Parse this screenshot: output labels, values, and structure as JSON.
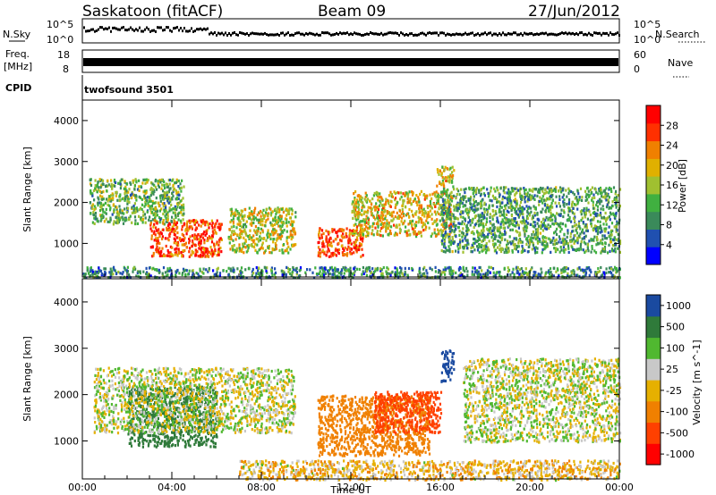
{
  "header": {
    "station": "Saskatoon (fitACF)",
    "beam": "Beam 09",
    "date": "27/Jun/2012"
  },
  "top_panels": {
    "nsky_label": "N.Sky",
    "nsearch_label": "N.Search",
    "nsky_ticks": [
      "10^5",
      "10^0"
    ],
    "nsearch_ticks": [
      "10^5",
      "10^0"
    ],
    "freq_label_line1": "Freq.",
    "freq_label_line2": "[MHz]",
    "freq_ticks": [
      "18",
      "8"
    ],
    "nave_label": "Nave",
    "nave_ticks": [
      "60",
      "0"
    ],
    "cpid_label": "CPID",
    "cpid_value": "twofsound 3501"
  },
  "colors": {
    "power_scale": [
      "#0000ff",
      "#2050b0",
      "#3a8a5a",
      "#40b040",
      "#a0c030",
      "#e0b000",
      "#f08000",
      "#ff3000",
      "#ff0000"
    ],
    "velocity_scale": [
      "#1a4aa0",
      "#2f7a3a",
      "#50b830",
      "#c8c8c8",
      "#e6b000",
      "#f08000",
      "#ff4000",
      "#ff0000"
    ]
  },
  "chart_data": [
    {
      "type": "heatmap",
      "title": "",
      "quantity": "Power",
      "ylabel": "Slant Range [km]",
      "xlabel": "",
      "ylim": [
        180,
        4500
      ],
      "xlim": [
        0,
        24
      ],
      "y_ticks": [
        "1000",
        "2000",
        "3000",
        "4000"
      ],
      "colorbar_label": "Power [dB]",
      "colorbar_ticks": [
        "4",
        "8",
        "12",
        "16",
        "20",
        "24",
        "28"
      ],
      "colorbar_range": [
        0,
        30
      ],
      "x_ticks": [
        "00:00",
        "04:00",
        "08:00",
        "12:00",
        "16:00",
        "20:00",
        "00:00"
      ],
      "echo_regions": [
        {
          "t_start": 0.3,
          "t_end": 4.5,
          "range_low": 1500,
          "range_high": 2600,
          "level": 12
        },
        {
          "t_start": 3.0,
          "t_end": 6.2,
          "range_low": 700,
          "range_high": 1600,
          "level": 26
        },
        {
          "t_start": 6.5,
          "t_end": 9.5,
          "range_low": 800,
          "range_high": 1900,
          "level": 16
        },
        {
          "t_start": 10.5,
          "t_end": 12.5,
          "range_low": 700,
          "range_high": 1400,
          "level": 26
        },
        {
          "t_start": 12.0,
          "t_end": 16.5,
          "range_low": 1200,
          "range_high": 2300,
          "level": 18
        },
        {
          "t_start": 16.0,
          "t_end": 24.0,
          "range_low": 800,
          "range_high": 2400,
          "level": 10
        },
        {
          "t_start": 15.8,
          "t_end": 16.6,
          "range_low": 2400,
          "range_high": 2900,
          "level": 18
        },
        {
          "t_start": 0.0,
          "t_end": 24.0,
          "range_low": 180,
          "range_high": 450,
          "level": 8
        }
      ]
    },
    {
      "type": "heatmap",
      "title": "",
      "quantity": "Velocity",
      "ylabel": "Slant Range [km]",
      "xlabel": "Time UT",
      "ylim": [
        180,
        4500
      ],
      "xlim": [
        0,
        24
      ],
      "y_ticks": [
        "1000",
        "2000",
        "3000",
        "4000"
      ],
      "colorbar_label": "Velocity [m s^-1]",
      "colorbar_ticks": [
        "1000",
        "500",
        "100",
        "25",
        "-25",
        "-100",
        "-500",
        "-1000"
      ],
      "colorbar_range": [
        -1000,
        1000
      ],
      "x_ticks": [
        "00:00",
        "04:00",
        "08:00",
        "12:00",
        "16:00",
        "20:00",
        "00:00"
      ],
      "echo_regions": [
        {
          "t_start": 2.0,
          "t_end": 6.0,
          "range_low": 900,
          "range_high": 2200,
          "velocity": 250
        },
        {
          "t_start": 0.5,
          "t_end": 9.5,
          "range_low": 1200,
          "range_high": 2600,
          "velocity": 0
        },
        {
          "t_start": 10.5,
          "t_end": 15.5,
          "range_low": 700,
          "range_high": 2000,
          "velocity": -300
        },
        {
          "t_start": 13.0,
          "t_end": 16.0,
          "range_low": 1200,
          "range_high": 2100,
          "velocity": -900
        },
        {
          "t_start": 16.0,
          "t_end": 16.6,
          "range_low": 2300,
          "range_high": 3000,
          "velocity": 1000
        },
        {
          "t_start": 17.0,
          "t_end": 24.0,
          "range_low": 1000,
          "range_high": 2800,
          "velocity": 0
        },
        {
          "t_start": 7.0,
          "t_end": 24.0,
          "range_low": 180,
          "range_high": 600,
          "velocity": -60
        }
      ]
    }
  ]
}
